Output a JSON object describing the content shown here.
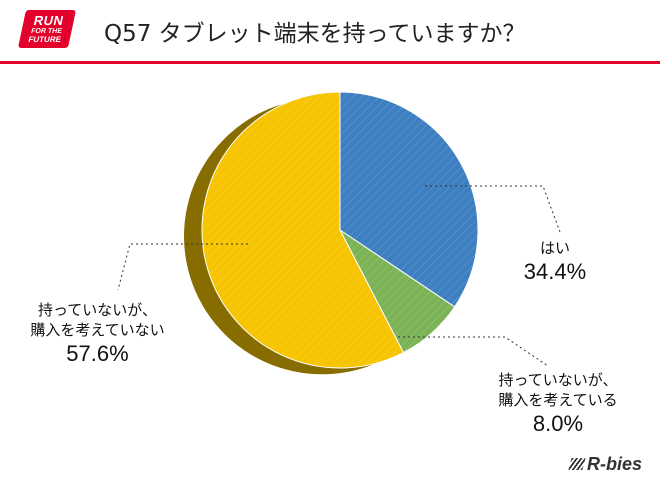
{
  "logo": {
    "line1": "RUN",
    "line2": "FOR THE",
    "line3": "FUTURE"
  },
  "title": "Q57 タブレット端末を持っていますか？",
  "brand": "R-bies",
  "colors": {
    "accent": "#e3002b",
    "yes": "#3d7fc1",
    "no_plan": "#7cb356",
    "no_buy": "#f6c400"
  },
  "chart_data": {
    "type": "pie",
    "slices": [
      {
        "name": "はい",
        "value": 34.4,
        "color": "#3d7fc1",
        "label_lines": [
          "はい"
        ],
        "label_pct": "34.4%"
      },
      {
        "name": "持っていないが、購入を考えている",
        "value": 8.0,
        "color": "#7cb356",
        "label_lines": [
          "持っていないが、",
          "購入を考えている"
        ],
        "label_pct": "8.0%"
      },
      {
        "name": "持っていないが、購入を考えていない",
        "value": 57.6,
        "color": "#f6c400",
        "label_lines": [
          "持っていないが、",
          "購入を考えていない"
        ],
        "label_pct": "57.6%"
      }
    ],
    "start_angle": "12 o'clock",
    "direction": "clockwise",
    "legend": "none",
    "style": "3d-tilted-hatched"
  }
}
